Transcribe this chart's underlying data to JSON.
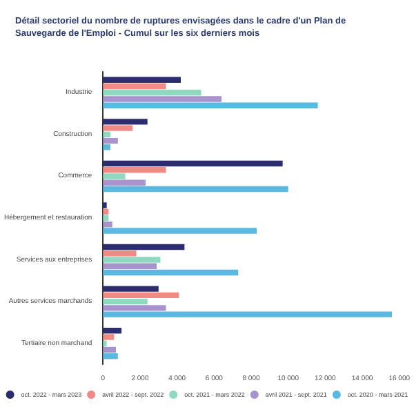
{
  "chart_data": {
    "type": "bar",
    "orientation": "horizontal",
    "title": "Détail sectoriel du nombre de ruptures envisagées dans le cadre d'un Plan de Sauvegarde de l'Emploi - Cumul sur les six derniers mois",
    "categories": [
      "Industrie",
      "Construction",
      "Commerce",
      "Hébergement et restauration",
      "Services aux entreprises",
      "Autres services marchands",
      "Tertiaire non marchand"
    ],
    "series": [
      {
        "name": "oct. 2022 - mars 2023",
        "color": "#2b2d6e",
        "values": [
          4200,
          2400,
          9700,
          200,
          4400,
          3000,
          1000
        ]
      },
      {
        "name": "avril 2022 - sept. 2022",
        "color": "#f08a84",
        "values": [
          3400,
          1600,
          3400,
          300,
          1800,
          4100,
          600
        ]
      },
      {
        "name": "oct. 2021 - mars 2022",
        "color": "#8fd9c0",
        "values": [
          5300,
          400,
          1200,
          300,
          3100,
          2400,
          200
        ]
      },
      {
        "name": "avril 2021 - sept. 2021",
        "color": "#a893cc",
        "values": [
          6400,
          800,
          2300,
          500,
          2900,
          3400,
          700
        ]
      },
      {
        "name": "oct. 2020 - mars 2021",
        "color": "#5bb8e0",
        "values": [
          11600,
          400,
          10000,
          8300,
          7300,
          15600,
          800
        ]
      }
    ],
    "xlim": [
      0,
      16000
    ],
    "xticks": [
      0,
      {
        "value": 2000,
        "label": "2 000"
      },
      {
        "value": 4000,
        "label": "4 000"
      },
      {
        "value": 6000,
        "label": "6 000"
      },
      {
        "value": 8000,
        "label": "8 000"
      },
      {
        "value": 10000,
        "label": "10 000"
      },
      {
        "value": 12000,
        "label": "12 000"
      },
      {
        "value": 14000,
        "label": "14 000"
      },
      {
        "value": 16000,
        "label": "16 000"
      }
    ],
    "grid": false,
    "legend": "bottom"
  }
}
